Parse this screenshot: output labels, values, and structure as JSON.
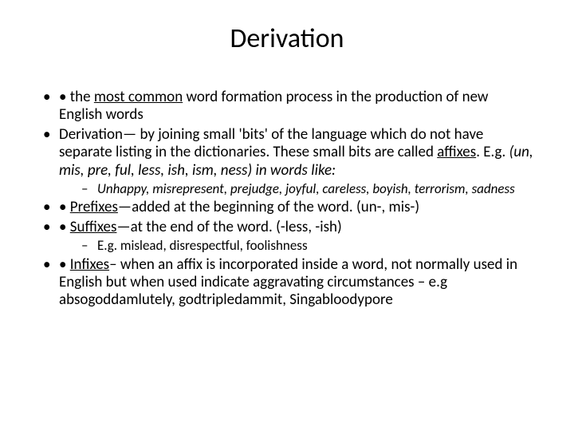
{
  "background_color": "#ffffff",
  "text_color": "#000000",
  "font_family": "Calibri",
  "title": {
    "text": "Derivation",
    "fontsize": 34,
    "align": "center"
  },
  "body_fontsize": 19,
  "sub_fontsize": 17,
  "bullets": {
    "b1": {
      "pre": "• the ",
      "underlined": "most common",
      "post": " word formation process in the production of new English words"
    },
    "b2": {
      "pre": "Derivation— by joining small 'bits' of the language which do not have separate listing in the dictionaries. These small bits are called ",
      "underlined": "affixes",
      "post_plain": ". E.g. ",
      "italic_tail": "(un, mis, pre, ful, less, ish, ism, ness) in words like:"
    },
    "b2_sub": "Unhappy, misrepresent, prejudge, joyful, careless, boyish, terrorism, sadness",
    "b3": {
      "pre": "• ",
      "underlined": "Prefixes",
      "post": "—added at the beginning of the word. (un-, mis-)"
    },
    "b4": {
      "pre": "• ",
      "underlined": "Suffixes",
      "post": "—at the end of the word. (-less, -ish)"
    },
    "b4_sub": "E.g. mislead, disrespectful, foolishness",
    "b5": {
      "pre": "• ",
      "underlined": "Infixes",
      "post": "– when an affix is incorporated inside a word, not normally used in English but when used indicate aggravating circumstances – e.g absogoddamlutely, godtripledammit, Singabloodypore"
    }
  }
}
